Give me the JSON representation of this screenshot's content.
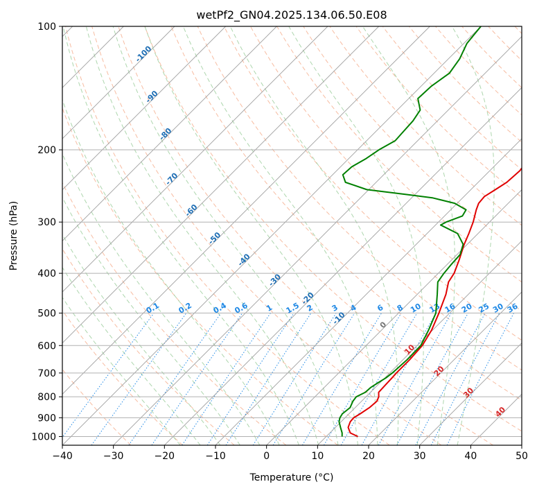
{
  "chart_data": {
    "type": "line",
    "title": "wetPf2_GN04.2025.134.06.50.E08",
    "xlabel": "Temperature (°C)",
    "ylabel": "Pressure (hPa)",
    "xlim": [
      -40,
      50
    ],
    "ylim": [
      1050,
      100
    ],
    "y_scale": "log",
    "skew": "skew-T",
    "grid": true,
    "x_ticks": [
      -40,
      -30,
      -20,
      -10,
      0,
      10,
      20,
      30,
      40,
      50
    ],
    "y_ticks": [
      1000,
      900,
      800,
      700,
      600,
      500,
      400,
      300,
      200,
      100
    ],
    "colors": {
      "temperature": "#e00000",
      "dewpoint": "#008000",
      "dry_adiabats": "#f4a582",
      "moist_adiabats": "#99cc99",
      "mixing_ratio": "#1e88e5",
      "isotherms": "#888888",
      "isotherm_labels": "#1f6fb5",
      "warm_isotherm_labels": "#d62728"
    },
    "series": [
      {
        "name": "",
        "key": "temperature",
        "pressure": [
          1000,
          980,
          950,
          920,
          900,
          880,
          850,
          820,
          800,
          780,
          750,
          720,
          700,
          650,
          600,
          550,
          500,
          450,
          420,
          400,
          370,
          340,
          320,
          300,
          280,
          270,
          260,
          250,
          240,
          225,
          210,
          200,
          185,
          170,
          160,
          150,
          145,
          140,
          130,
          125,
          120,
          115,
          110,
          105,
          100
        ],
        "values": [
          16.2,
          14,
          12.5,
          11.8,
          11.7,
          12.2,
          12.8,
          13,
          12.5,
          11.6,
          11.5,
          11.4,
          11.3,
          11.3,
          11,
          9.8,
          7.9,
          5.6,
          3.7,
          3.1,
          1.4,
          -0.6,
          -1.8,
          -3.2,
          -5,
          -5.8,
          -6,
          -5.2,
          -4.4,
          -4.1,
          -4.6,
          -5.2,
          -6.8,
          -9.3,
          -11,
          -10.6,
          -10.8,
          -12.6,
          -15.8,
          -17.4,
          -19.2,
          -21.6,
          -23.5,
          -25.6,
          -27.2
        ]
      },
      {
        "name": "",
        "key": "dewpoint",
        "pressure": [
          1000,
          980,
          950,
          920,
          900,
          880,
          850,
          820,
          800,
          780,
          760,
          740,
          720,
          700,
          650,
          600,
          550,
          500,
          450,
          420,
          400,
          380,
          360,
          340,
          320,
          305,
          300,
          290,
          280,
          270,
          262,
          257,
          250,
          240,
          230,
          220,
          210,
          200,
          190,
          180,
          170,
          160,
          150,
          140,
          130,
          120,
          110,
          100
        ],
        "values": [
          13.1,
          12.4,
          11,
          9.6,
          9,
          8.7,
          9,
          8.3,
          8.1,
          9,
          9.1,
          9.6,
          10.2,
          10.5,
          10.8,
          10.7,
          9.2,
          7.3,
          3.9,
          1.6,
          1.1,
          0.8,
          0.6,
          -0.8,
          -4,
          -9,
          -8.5,
          -6.5,
          -7,
          -10.5,
          -15.8,
          -21.6,
          -30.4,
          -36,
          -38,
          -37.8,
          -36.6,
          -35.8,
          -34.4,
          -34.6,
          -34.8,
          -35.5,
          -38.2,
          -38,
          -37,
          -37.8,
          -39.4,
          -40
        ]
      }
    ],
    "isotherm_labels": [
      "-100",
      "-90",
      "-80",
      "-70",
      "-60",
      "-50",
      "-40",
      "-30",
      "-20",
      "-10",
      "0",
      "10",
      "20",
      "30",
      "40"
    ],
    "mixing_ratio_labels": [
      "0.1",
      "0.2",
      "0.4",
      "0.6",
      "1",
      "1.5",
      "2",
      "3",
      "4",
      "6",
      "8",
      "10",
      "13",
      "16",
      "20",
      "25",
      "30",
      "36"
    ]
  }
}
